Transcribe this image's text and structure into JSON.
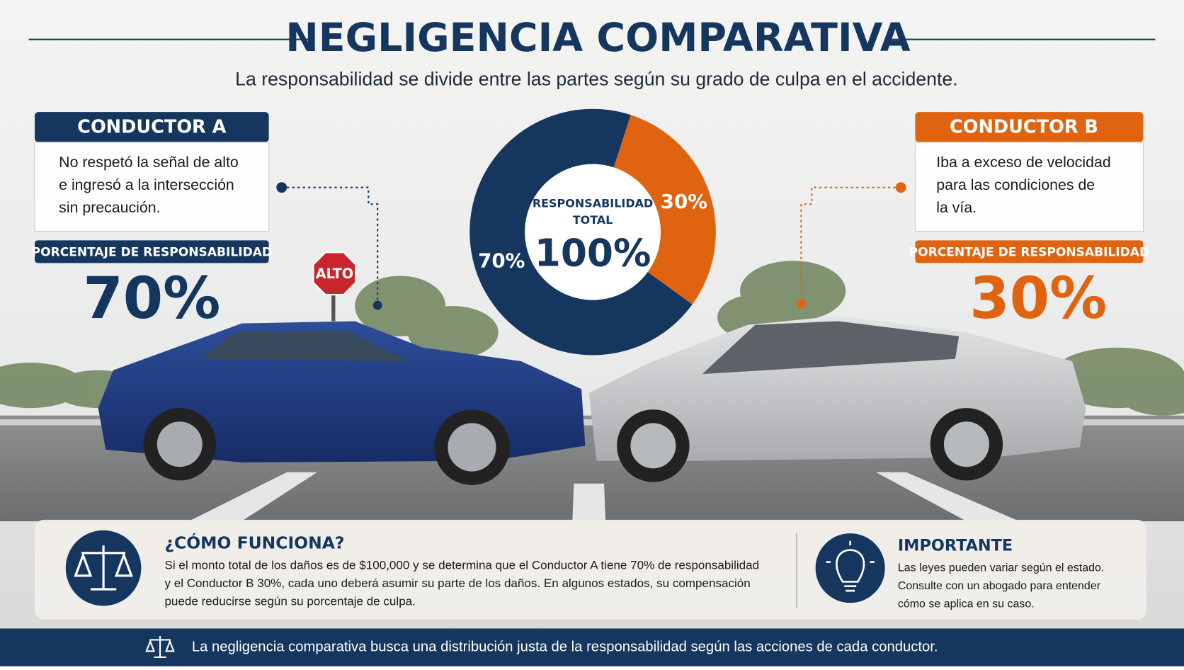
{
  "header": {
    "title": "NEGLIGENCIA COMPARATIVA",
    "subtitle": "La responsabilidad se divide entre las partes según su grado de culpa en el accidente."
  },
  "driver_a": {
    "title": "CONDUCTOR A",
    "description": [
      "No respetó la señal de alto",
      "e ingresó a la intersección",
      "sin precaución."
    ],
    "percent_label": "PORCENTAJE DE RESPONSABILIDAD",
    "percent": "70%"
  },
  "driver_b": {
    "title": "CONDUCTOR B",
    "description": [
      "Iba a exceso de velocidad",
      "para las condiciones de",
      "la vía."
    ],
    "percent_label": "PORCENTAJE DE RESPONSABILIDAD",
    "percent": "30%"
  },
  "stop_sign": "ALTO",
  "donut": {
    "center_label": [
      "RESPONSABILIDAD",
      "TOTAL"
    ],
    "center_value": "100%",
    "values": [
      70,
      30
    ],
    "value_labels": [
      "70%",
      "30%"
    ],
    "colors": [
      "#14365f",
      "#e0640f"
    ]
  },
  "how_it_works": {
    "title": "¿CÓMO FUNCIONA?",
    "lines": [
      "Si el monto total de los daños es de $100,000 y se determina que el Conductor A tiene 70% de responsabilidad",
      "y el Conductor B 30%, cada uno deberá asumir su parte de los daños. En algunos estados, su compensación",
      "puede reducirse según su porcentaje de culpa."
    ]
  },
  "important": {
    "title": "IMPORTANTE",
    "lines": [
      "Las leyes pueden variar según el estado.",
      "Consulte con un abogado para entender",
      "cómo se aplica en su caso."
    ]
  },
  "footer": "La negligencia comparativa busca una distribución justa de la responsabilidad según las acciones de cada conductor."
}
